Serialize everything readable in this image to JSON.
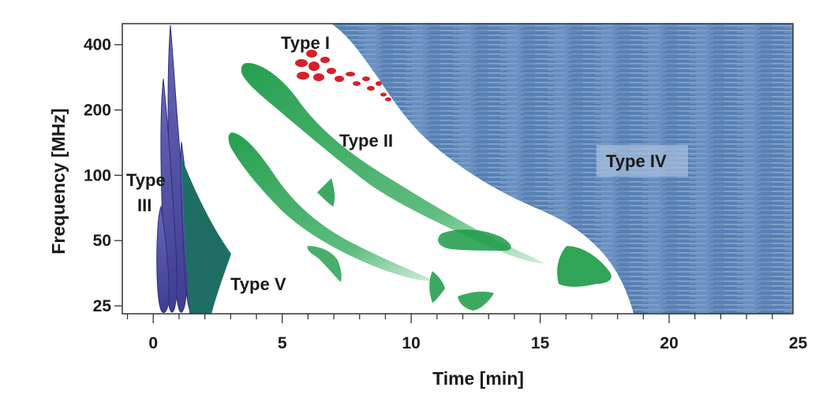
{
  "axes": {
    "xlabel": "Time [min]",
    "ylabel": "Frequency [MHz]",
    "x_ticks": [
      "0",
      "5",
      "10",
      "15",
      "20",
      "25"
    ],
    "y_ticks": [
      "400",
      "200",
      "100",
      "50",
      "25"
    ],
    "xlim": [
      -1.2,
      24.8
    ],
    "ylim_mhz": [
      23,
      500
    ],
    "y_scale": "log"
  },
  "bursts": {
    "type1": "Type I",
    "type2": "Type II",
    "type3_line1": "Type",
    "type3_line2": "III",
    "type4": "Type IV",
    "type5": "Type V"
  },
  "colors": {
    "type1": "#d6202a",
    "type2": "#1a9a45",
    "type3": "#4b4aa0",
    "type4": "#5b86b8",
    "type5": "#1e6e63",
    "frame": "#333333"
  }
}
